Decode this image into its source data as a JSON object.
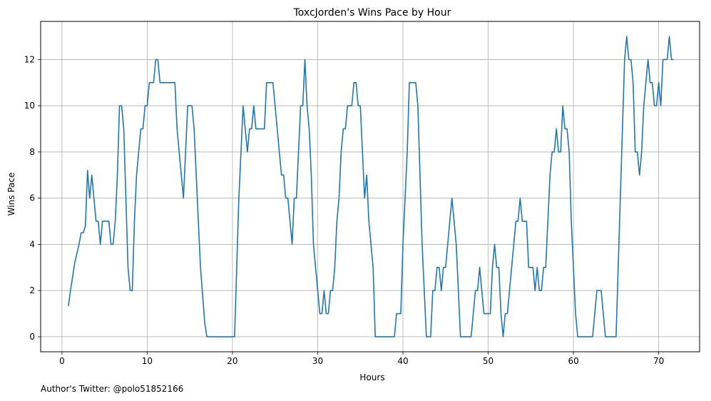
{
  "chart_data": {
    "type": "line",
    "title": "ToxcJorden's Wins Pace by Hour",
    "xlabel": "Hours",
    "ylabel": "Wins Pace",
    "xlim": [
      -2.5,
      74.8
    ],
    "ylim": [
      -0.65,
      13.65
    ],
    "xticks": [
      0,
      10,
      20,
      30,
      40,
      50,
      60,
      70
    ],
    "yticks": [
      0,
      2,
      4,
      6,
      8,
      10,
      12
    ],
    "grid": true,
    "line_color": "#1f77b4",
    "series": [
      {
        "values": [
          [
            0.75,
            1.33
          ],
          [
            1.0,
            2.0
          ],
          [
            1.25,
            2.6
          ],
          [
            1.5,
            3.2
          ],
          [
            1.75,
            3.6
          ],
          [
            2.0,
            4.0
          ],
          [
            2.25,
            4.5
          ],
          [
            2.5,
            4.5
          ],
          [
            2.75,
            4.8
          ],
          [
            3.0,
            7.2
          ],
          [
            3.25,
            6.0
          ],
          [
            3.5,
            7.0
          ],
          [
            3.75,
            6.0
          ],
          [
            4.0,
            5.0
          ],
          [
            4.25,
            5.0
          ],
          [
            4.5,
            4.0
          ],
          [
            4.75,
            5.0
          ],
          [
            5.0,
            5.0
          ],
          [
            5.5,
            5.0
          ],
          [
            5.75,
            4.0
          ],
          [
            6.0,
            4.0
          ],
          [
            6.25,
            5.0
          ],
          [
            6.5,
            7.0
          ],
          [
            6.75,
            10.0
          ],
          [
            7.0,
            10.0
          ],
          [
            7.25,
            9.0
          ],
          [
            7.5,
            6.0
          ],
          [
            7.75,
            3.0
          ],
          [
            8.0,
            2.0
          ],
          [
            8.25,
            2.0
          ],
          [
            8.5,
            5.0
          ],
          [
            8.75,
            7.0
          ],
          [
            9.0,
            8.0
          ],
          [
            9.25,
            9.0
          ],
          [
            9.5,
            9.0
          ],
          [
            9.75,
            10.0
          ],
          [
            10.0,
            10.0
          ],
          [
            10.25,
            11.0
          ],
          [
            10.5,
            11.0
          ],
          [
            10.75,
            11.0
          ],
          [
            11.0,
            12.0
          ],
          [
            11.25,
            12.0
          ],
          [
            11.5,
            11.0
          ],
          [
            11.75,
            11.0
          ],
          [
            12.0,
            11.0
          ],
          [
            12.5,
            11.0
          ],
          [
            13.0,
            11.0
          ],
          [
            13.25,
            11.0
          ],
          [
            13.5,
            9.0
          ],
          [
            13.75,
            8.0
          ],
          [
            14.0,
            7.0
          ],
          [
            14.25,
            6.0
          ],
          [
            14.5,
            8.0
          ],
          [
            14.75,
            10.0
          ],
          [
            15.0,
            10.0
          ],
          [
            15.25,
            10.0
          ],
          [
            15.5,
            9.0
          ],
          [
            15.75,
            7.0
          ],
          [
            16.0,
            5.0
          ],
          [
            16.25,
            3.0
          ],
          [
            16.5,
            1.8
          ],
          [
            16.75,
            0.6
          ],
          [
            17.0,
            0.0
          ],
          [
            20.25,
            0.0
          ],
          [
            20.5,
            3.0
          ],
          [
            20.75,
            6.0
          ],
          [
            21.0,
            8.0
          ],
          [
            21.25,
            10.0
          ],
          [
            21.5,
            9.0
          ],
          [
            21.75,
            8.0
          ],
          [
            22.0,
            9.0
          ],
          [
            22.25,
            9.0
          ],
          [
            22.5,
            10.0
          ],
          [
            22.75,
            9.0
          ],
          [
            23.0,
            9.0
          ],
          [
            23.75,
            9.0
          ],
          [
            24.0,
            11.0
          ],
          [
            24.75,
            11.0
          ],
          [
            25.0,
            10.0
          ],
          [
            25.25,
            9.0
          ],
          [
            25.5,
            8.0
          ],
          [
            25.75,
            7.0
          ],
          [
            26.0,
            7.0
          ],
          [
            26.25,
            6.0
          ],
          [
            26.5,
            6.0
          ],
          [
            26.75,
            5.0
          ],
          [
            27.0,
            4.0
          ],
          [
            27.25,
            6.0
          ],
          [
            27.5,
            6.0
          ],
          [
            27.75,
            8.0
          ],
          [
            28.0,
            10.0
          ],
          [
            28.25,
            10.0
          ],
          [
            28.5,
            12.0
          ],
          [
            28.75,
            10.0
          ],
          [
            29.0,
            9.0
          ],
          [
            29.25,
            7.0
          ],
          [
            29.5,
            4.0
          ],
          [
            29.75,
            3.0
          ],
          [
            30.0,
            2.0
          ],
          [
            30.25,
            1.0
          ],
          [
            30.5,
            1.0
          ],
          [
            30.75,
            2.0
          ],
          [
            31.0,
            1.0
          ],
          [
            31.25,
            1.0
          ],
          [
            31.5,
            2.0
          ],
          [
            31.75,
            2.0
          ],
          [
            32.0,
            3.0
          ],
          [
            32.25,
            5.0
          ],
          [
            32.5,
            6.0
          ],
          [
            32.75,
            8.0
          ],
          [
            33.0,
            9.0
          ],
          [
            33.25,
            9.0
          ],
          [
            33.5,
            10.0
          ],
          [
            34.0,
            10.0
          ],
          [
            34.25,
            11.0
          ],
          [
            34.5,
            11.0
          ],
          [
            34.75,
            10.0
          ],
          [
            35.0,
            10.0
          ],
          [
            35.25,
            8.0
          ],
          [
            35.5,
            6.0
          ],
          [
            35.75,
            7.0
          ],
          [
            36.0,
            5.0
          ],
          [
            36.25,
            4.0
          ],
          [
            36.5,
            3.0
          ],
          [
            36.75,
            0.0
          ],
          [
            39.0,
            0.0
          ],
          [
            39.25,
            1.0
          ],
          [
            39.75,
            1.0
          ],
          [
            40.0,
            4.0
          ],
          [
            40.25,
            6.0
          ],
          [
            40.5,
            8.0
          ],
          [
            40.75,
            11.0
          ],
          [
            41.5,
            11.0
          ],
          [
            41.75,
            10.0
          ],
          [
            42.0,
            7.0
          ],
          [
            42.25,
            4.0
          ],
          [
            42.5,
            2.0
          ],
          [
            42.75,
            0.0
          ],
          [
            43.25,
            0.0
          ],
          [
            43.5,
            2.0
          ],
          [
            43.75,
            2.0
          ],
          [
            44.0,
            3.0
          ],
          [
            44.25,
            3.0
          ],
          [
            44.5,
            2.0
          ],
          [
            44.75,
            3.0
          ],
          [
            45.0,
            3.0
          ],
          [
            45.25,
            4.0
          ],
          [
            45.5,
            5.0
          ],
          [
            45.75,
            6.0
          ],
          [
            46.0,
            5.0
          ],
          [
            46.25,
            4.0
          ],
          [
            46.5,
            2.0
          ],
          [
            46.75,
            0.0
          ],
          [
            48.0,
            0.0
          ],
          [
            48.25,
            1.0
          ],
          [
            48.5,
            2.0
          ],
          [
            48.75,
            2.0
          ],
          [
            49.0,
            3.0
          ],
          [
            49.25,
            2.0
          ],
          [
            49.5,
            1.0
          ],
          [
            50.25,
            1.0
          ],
          [
            50.5,
            3.0
          ],
          [
            50.75,
            4.0
          ],
          [
            51.0,
            3.0
          ],
          [
            51.25,
            3.0
          ],
          [
            51.5,
            1.0
          ],
          [
            51.75,
            0.0
          ],
          [
            52.0,
            1.0
          ],
          [
            52.25,
            1.0
          ],
          [
            52.5,
            2.0
          ],
          [
            52.75,
            3.0
          ],
          [
            53.0,
            4.0
          ],
          [
            53.25,
            5.0
          ],
          [
            53.5,
            5.0
          ],
          [
            53.75,
            6.0
          ],
          [
            54.0,
            5.0
          ],
          [
            54.5,
            5.0
          ],
          [
            54.75,
            3.0
          ],
          [
            55.25,
            3.0
          ],
          [
            55.5,
            2.0
          ],
          [
            55.75,
            3.0
          ],
          [
            56.0,
            2.0
          ],
          [
            56.25,
            2.0
          ],
          [
            56.5,
            3.0
          ],
          [
            56.75,
            3.0
          ],
          [
            57.0,
            5.0
          ],
          [
            57.25,
            7.0
          ],
          [
            57.5,
            8.0
          ],
          [
            57.75,
            8.0
          ],
          [
            58.0,
            9.0
          ],
          [
            58.25,
            8.0
          ],
          [
            58.5,
            8.0
          ],
          [
            58.75,
            10.0
          ],
          [
            59.0,
            9.0
          ],
          [
            59.25,
            9.0
          ],
          [
            59.5,
            8.0
          ],
          [
            59.75,
            5.0
          ],
          [
            60.0,
            3.0
          ],
          [
            60.25,
            1.0
          ],
          [
            60.5,
            0.0
          ],
          [
            62.25,
            0.0
          ],
          [
            62.5,
            1.0
          ],
          [
            62.75,
            2.0
          ],
          [
            63.25,
            2.0
          ],
          [
            63.5,
            1.0
          ],
          [
            63.75,
            0.0
          ],
          [
            65.0,
            0.0
          ],
          [
            65.25,
            3.0
          ],
          [
            65.5,
            6.0
          ],
          [
            65.75,
            9.0
          ],
          [
            66.0,
            12.0
          ],
          [
            66.25,
            13.0
          ],
          [
            66.5,
            12.0
          ],
          [
            66.75,
            12.0
          ],
          [
            67.0,
            11.0
          ],
          [
            67.25,
            8.0
          ],
          [
            67.5,
            8.0
          ],
          [
            67.75,
            7.0
          ],
          [
            68.0,
            8.0
          ],
          [
            68.25,
            10.0
          ],
          [
            68.5,
            11.0
          ],
          [
            68.75,
            12.0
          ],
          [
            69.0,
            11.0
          ],
          [
            69.25,
            11.0
          ],
          [
            69.5,
            10.0
          ],
          [
            69.75,
            10.0
          ],
          [
            70.0,
            11.0
          ],
          [
            70.25,
            10.0
          ],
          [
            70.5,
            12.0
          ],
          [
            71.0,
            12.0
          ],
          [
            71.25,
            13.0
          ],
          [
            71.5,
            12.0
          ],
          [
            71.75,
            12.0
          ]
        ]
      }
    ]
  },
  "footer": {
    "text": "Author's Twitter: @polo51852166"
  }
}
